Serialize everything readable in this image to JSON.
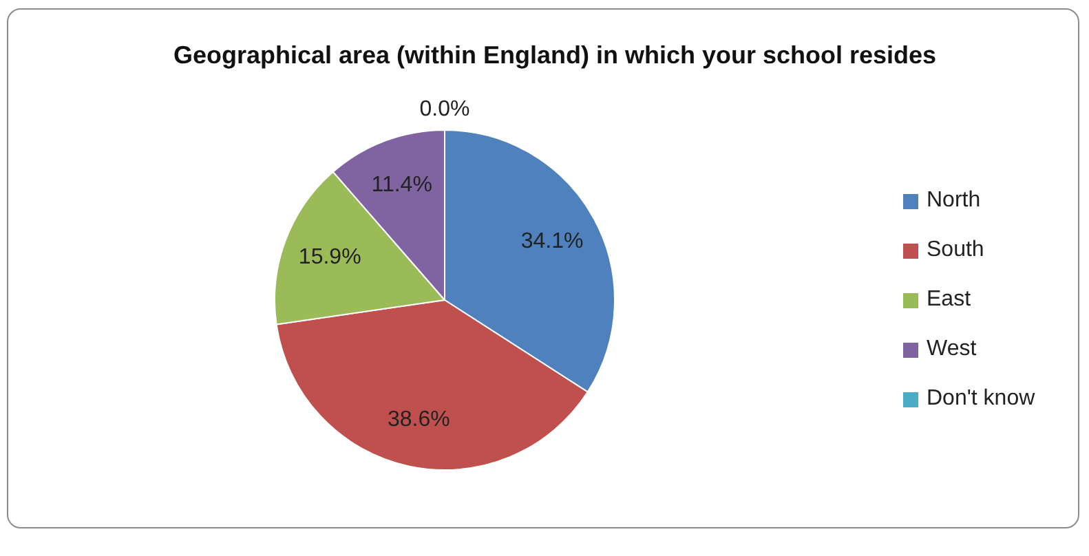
{
  "chart_data": {
    "type": "pie",
    "title": "Geographical area (within England) in which your school resides",
    "categories": [
      "North",
      "South",
      "East",
      "West",
      "Don't know"
    ],
    "values": [
      34.1,
      38.6,
      15.9,
      11.4,
      0.0
    ],
    "colors": [
      "#4f81bd",
      "#c0504d",
      "#9bbb59",
      "#8064a2",
      "#4bacc6"
    ],
    "value_labels": [
      "34.1%",
      "38.6%",
      "15.9%",
      "11.4%",
      "0.0%"
    ],
    "legend": "right"
  }
}
